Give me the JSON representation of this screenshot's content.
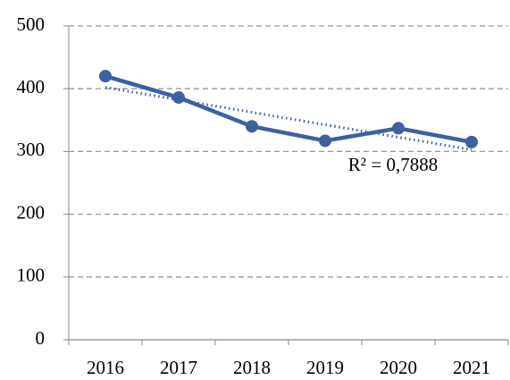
{
  "chart_data": {
    "type": "line",
    "categories": [
      "2016",
      "2017",
      "2018",
      "2019",
      "2020",
      "2021"
    ],
    "series": [
      {
        "name": "Series",
        "color": "#3f5fa0",
        "values": [
          420,
          386,
          340,
          317,
          337,
          315
        ]
      }
    ],
    "ylim": [
      0,
      500
    ],
    "yticks": [
      0,
      100,
      200,
      300,
      400,
      500
    ],
    "grid": true,
    "trendline": "linear",
    "annotation": "R² = 0,7888"
  }
}
